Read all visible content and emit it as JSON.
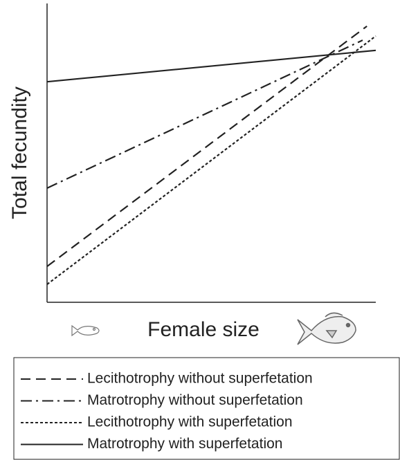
{
  "chart_data": {
    "type": "line",
    "xlabel": "Female size",
    "ylabel": "Total fecundity",
    "xlim": [
      0,
      1
    ],
    "ylim": [
      0,
      1
    ],
    "series": [
      {
        "name": "Lecithotrophy without superfetation",
        "color": "#222",
        "dash": "14,8",
        "x": [
          0,
          0.973
        ],
        "values": [
          0.12,
          0.924
        ]
      },
      {
        "name": "Matrotrophy without superfetation",
        "color": "#222",
        "dash": "16,6,3,6",
        "x": [
          0,
          0.96
        ],
        "values": [
          0.382,
          0.877
        ]
      },
      {
        "name": "Lecithotrophy with superfetation",
        "color": "#222",
        "dash": "4,3",
        "x": [
          0,
          1.0
        ],
        "values": [
          0.06,
          0.891
        ]
      },
      {
        "name": "Matrotrophy with superfetation",
        "color": "#222",
        "dash": "none",
        "x": [
          0,
          1.0
        ],
        "values": [
          0.738,
          0.843
        ]
      }
    ],
    "legend": "bottom"
  }
}
